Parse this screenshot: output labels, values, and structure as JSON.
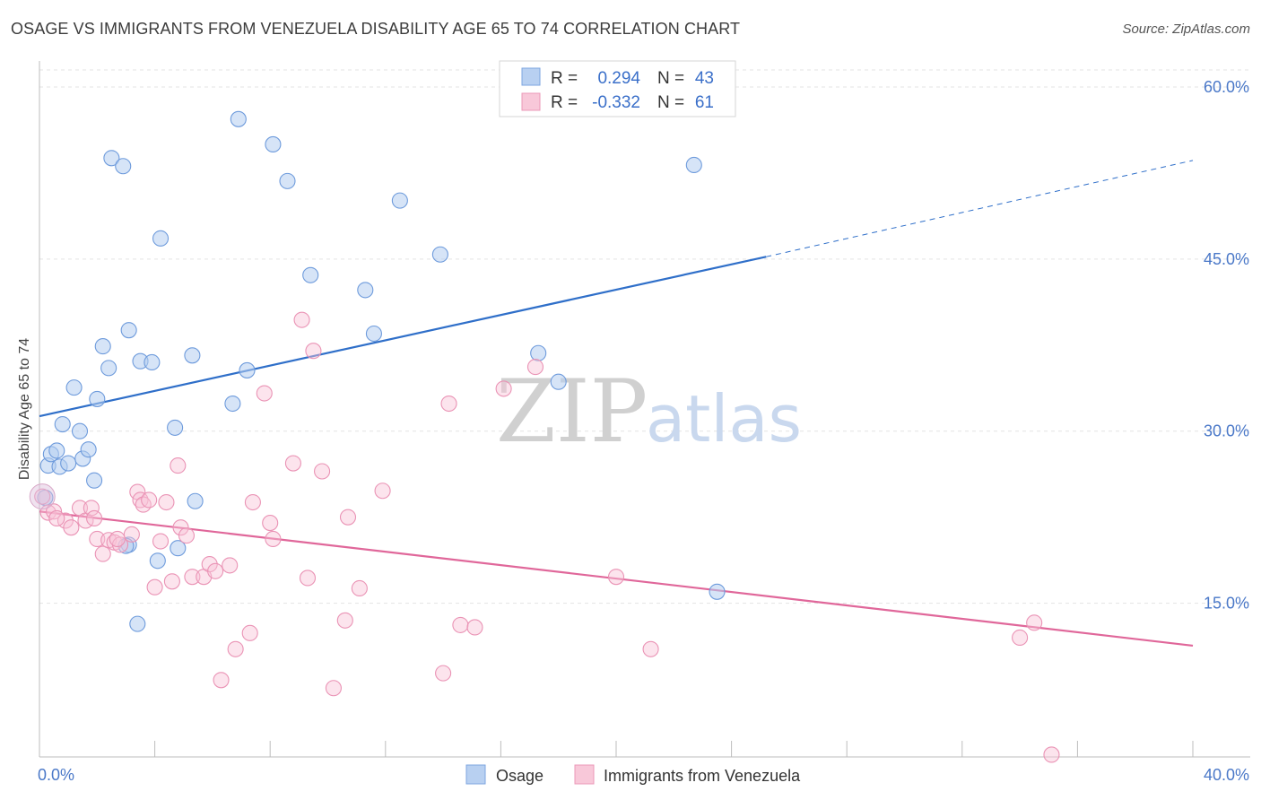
{
  "title": "OSAGE VS IMMIGRANTS FROM VENEZUELA DISABILITY AGE 65 TO 74 CORRELATION CHART",
  "source": "Source: ZipAtlas.com",
  "watermark": {
    "zip": "ZIP",
    "atlas": "atlas"
  },
  "colors": {
    "osage": "#a9c6ee",
    "osage_line": "#2f6fc9",
    "venezuela": "#f5b9cf",
    "venezuela_line": "#e0679a",
    "tick": "#4a78c8"
  },
  "legend": {
    "osage": {
      "r_label": "R =",
      "r_value": "0.294",
      "n_label": "N =",
      "n_value": "43"
    },
    "venezuela": {
      "r_label": "R =",
      "r_value": "-0.332",
      "n_label": "N =",
      "n_value": "61"
    }
  },
  "chart_data": {
    "type": "scatter",
    "ylabel": "Disability Age 65 to 74",
    "xlim": [
      0,
      40
    ],
    "ylim": [
      0,
      60
    ],
    "x_ticks": [
      "0.0%",
      "40.0%"
    ],
    "y_ticks": [
      {
        "value": 60,
        "label": "60.0%"
      },
      {
        "value": 45,
        "label": "45.0%"
      },
      {
        "value": 30,
        "label": "30.0%"
      },
      {
        "value": 15,
        "label": "15.0%"
      }
    ],
    "grid": true,
    "series": [
      {
        "name": "Osage",
        "color": "#a9c6ee",
        "trend": {
          "x0": 0,
          "y0": 31.3,
          "x1": 25.2,
          "y1": 45.2,
          "dash_x1": 40,
          "dash_y1": 53.6
        },
        "points": [
          [
            0.2,
            24.2
          ],
          [
            0.3,
            27.0
          ],
          [
            0.4,
            28.0
          ],
          [
            0.6,
            28.3
          ],
          [
            0.7,
            26.9
          ],
          [
            0.8,
            30.6
          ],
          [
            1.0,
            27.2
          ],
          [
            1.2,
            33.8
          ],
          [
            1.4,
            30.0
          ],
          [
            1.5,
            27.6
          ],
          [
            1.7,
            28.4
          ],
          [
            1.9,
            25.7
          ],
          [
            2.0,
            32.8
          ],
          [
            2.2,
            37.4
          ],
          [
            2.4,
            35.5
          ],
          [
            2.5,
            53.8
          ],
          [
            2.9,
            53.1
          ],
          [
            3.1,
            20.1
          ],
          [
            3.1,
            38.8
          ],
          [
            3.4,
            13.2
          ],
          [
            3.5,
            36.1
          ],
          [
            3.9,
            36.0
          ],
          [
            4.1,
            18.7
          ],
          [
            4.2,
            46.8
          ],
          [
            4.7,
            30.3
          ],
          [
            4.8,
            19.8
          ],
          [
            5.3,
            36.6
          ],
          [
            5.4,
            23.9
          ],
          [
            6.7,
            32.4
          ],
          [
            6.9,
            57.2
          ],
          [
            7.2,
            35.3
          ],
          [
            8.1,
            55.0
          ],
          [
            8.6,
            51.8
          ],
          [
            9.4,
            43.6
          ],
          [
            11.3,
            42.3
          ],
          [
            11.6,
            38.5
          ],
          [
            12.5,
            50.1
          ],
          [
            13.9,
            45.4
          ],
          [
            17.3,
            36.8
          ],
          [
            18.0,
            34.3
          ],
          [
            22.7,
            53.2
          ],
          [
            23.5,
            16.0
          ],
          [
            3.0,
            20.0
          ]
        ]
      },
      {
        "name": "Immigrants from Venezuela",
        "color": "#f5b9cf",
        "trend": {
          "x0": 0,
          "y0": 23.0,
          "x1": 40,
          "y1": 11.3
        },
        "points": [
          [
            0.1,
            24.3
          ],
          [
            0.3,
            22.9
          ],
          [
            0.5,
            23.0
          ],
          [
            0.9,
            22.2
          ],
          [
            1.1,
            21.6
          ],
          [
            1.4,
            23.3
          ],
          [
            1.6,
            22.2
          ],
          [
            1.8,
            23.3
          ],
          [
            1.9,
            22.4
          ],
          [
            2.0,
            20.6
          ],
          [
            2.2,
            19.3
          ],
          [
            2.4,
            20.5
          ],
          [
            2.6,
            20.3
          ],
          [
            2.8,
            20.1
          ],
          [
            3.2,
            21.0
          ],
          [
            3.4,
            24.7
          ],
          [
            3.5,
            24.0
          ],
          [
            3.6,
            23.6
          ],
          [
            3.8,
            24.0
          ],
          [
            4.0,
            16.4
          ],
          [
            4.2,
            20.4
          ],
          [
            4.4,
            23.8
          ],
          [
            4.6,
            16.9
          ],
          [
            4.8,
            27.0
          ],
          [
            4.9,
            21.6
          ],
          [
            5.1,
            20.9
          ],
          [
            5.3,
            17.3
          ],
          [
            5.7,
            17.3
          ],
          [
            5.9,
            18.4
          ],
          [
            6.1,
            17.8
          ],
          [
            6.3,
            8.3
          ],
          [
            6.6,
            18.3
          ],
          [
            6.8,
            11.0
          ],
          [
            7.3,
            12.4
          ],
          [
            7.4,
            23.8
          ],
          [
            7.8,
            33.3
          ],
          [
            8.0,
            22.0
          ],
          [
            8.1,
            20.6
          ],
          [
            8.8,
            27.2
          ],
          [
            9.1,
            39.7
          ],
          [
            9.3,
            17.2
          ],
          [
            9.5,
            37.0
          ],
          [
            9.8,
            26.5
          ],
          [
            10.2,
            7.6
          ],
          [
            10.6,
            13.5
          ],
          [
            10.7,
            22.5
          ],
          [
            11.1,
            16.3
          ],
          [
            11.9,
            24.8
          ],
          [
            14.0,
            8.9
          ],
          [
            14.2,
            32.4
          ],
          [
            14.6,
            13.1
          ],
          [
            15.1,
            12.9
          ],
          [
            16.1,
            33.7
          ],
          [
            17.2,
            35.6
          ],
          [
            20.0,
            17.3
          ],
          [
            21.2,
            11.0
          ],
          [
            34.0,
            12.0
          ],
          [
            34.5,
            13.3
          ],
          [
            35.1,
            1.8
          ],
          [
            0.6,
            22.4
          ],
          [
            2.7,
            20.6
          ]
        ]
      }
    ]
  },
  "bottom_legend": {
    "osage": "Osage",
    "venezuela": "Immigrants from Venezuela"
  }
}
